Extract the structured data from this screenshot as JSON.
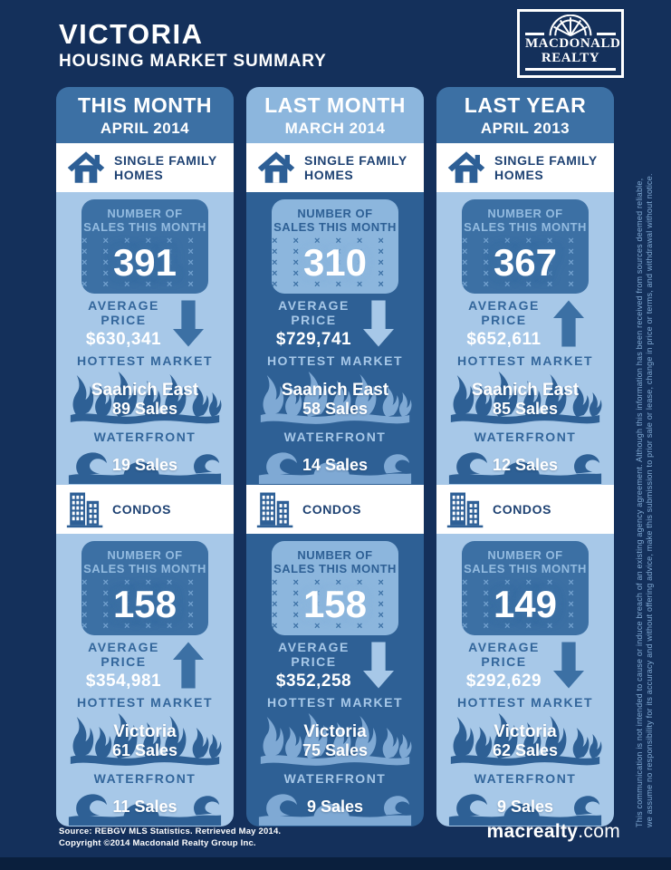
{
  "header": {
    "title": "VICTORIA",
    "subtitle": "HOUSING MARKET SUMMARY",
    "logo_line1": "MACDONALD",
    "logo_line2": "REALTY"
  },
  "labels": {
    "sfh_l1": "SINGLE FAMILY",
    "sfh_l2": "HOMES",
    "condos": "CONDOS",
    "sales_l1": "NUMBER OF",
    "sales_l2": "SALES THIS MONTH",
    "avg_l1": "AVERAGE",
    "avg_l2": "PRICE",
    "hottest": "HOTTEST MARKET",
    "waterfront": "WATERFRONT"
  },
  "columns": [
    {
      "period": "THIS MONTH",
      "date": "APRIL 2014",
      "sfh": {
        "sales": "391",
        "avg_price": "$630,341",
        "trend": "down",
        "hottest_name": "Saanich East",
        "hottest_sales": "89 Sales",
        "waterfront_sales": "19 Sales"
      },
      "condos": {
        "sales": "158",
        "avg_price": "$354,981",
        "trend": "up",
        "hottest_name": "Victoria",
        "hottest_sales": "61 Sales",
        "waterfront_sales": "11 Sales"
      }
    },
    {
      "period": "LAST MONTH",
      "date": "MARCH 2014",
      "sfh": {
        "sales": "310",
        "avg_price": "$729,741",
        "trend": "down",
        "hottest_name": "Saanich East",
        "hottest_sales": "58 Sales",
        "waterfront_sales": "14 Sales"
      },
      "condos": {
        "sales": "158",
        "avg_price": "$352,258",
        "trend": "down",
        "hottest_name": "Victoria",
        "hottest_sales": "75 Sales",
        "waterfront_sales": "9 Sales"
      }
    },
    {
      "period": "LAST YEAR",
      "date": "APRIL 2013",
      "sfh": {
        "sales": "367",
        "avg_price": "$652,611",
        "trend": "up",
        "hottest_name": "Saanich East",
        "hottest_sales": "85 Sales",
        "waterfront_sales": "12 Sales"
      },
      "condos": {
        "sales": "149",
        "avg_price": "$292,629",
        "trend": "down",
        "hottest_name": "Victoria",
        "hottest_sales": "62 Sales",
        "waterfront_sales": "9 Sales"
      }
    }
  ],
  "footer": {
    "source1": "Source:  REBGV MLS Statistics. Retrieved May 2014.",
    "source2": "Copyright ©2014 Macdonald Realty Group Inc.",
    "site_bold": "macrealty",
    "site_tld": ".com"
  },
  "disclaimer": {
    "line1": "This communication is not intended to cause or induce breach of an existing agency agreement.  Although this information has been received from sources deemed reliable,",
    "line2": "we assume no responsibility for its accuracy and without offering advice, make this submission to prior sale or lease, change in price or terms, and withdrawal without notice."
  },
  "colors": {
    "background_navy": "#14305b",
    "medium_blue": "#3c70a4",
    "light_blue": "#a7c8e8",
    "dark_body_blue": "#2e6095",
    "white": "#ffffff"
  },
  "chart_data": {
    "type": "table",
    "title": "Victoria Housing Market Summary",
    "columns": [
      "This Month (April 2014)",
      "Last Month (March 2014)",
      "Last Year (April 2013)"
    ],
    "rows": [
      {
        "metric": "Single Family Homes — Number of Sales",
        "values": [
          391,
          310,
          367
        ]
      },
      {
        "metric": "Single Family Homes — Average Price ($)",
        "values": [
          630341,
          729741,
          652611
        ]
      },
      {
        "metric": "Single Family Homes — Price Trend",
        "values": [
          "down",
          "down",
          "up"
        ]
      },
      {
        "metric": "Single Family Homes — Hottest Market",
        "values": [
          "Saanich East (89 sales)",
          "Saanich East (58 sales)",
          "Saanich East (85 sales)"
        ]
      },
      {
        "metric": "Single Family Homes — Waterfront Sales",
        "values": [
          19,
          14,
          12
        ]
      },
      {
        "metric": "Condos — Number of Sales",
        "values": [
          158,
          158,
          149
        ]
      },
      {
        "metric": "Condos — Average Price ($)",
        "values": [
          354981,
          352258,
          292629
        ]
      },
      {
        "metric": "Condos — Price Trend",
        "values": [
          "up",
          "down",
          "down"
        ]
      },
      {
        "metric": "Condos — Hottest Market",
        "values": [
          "Victoria (61 sales)",
          "Victoria (75 sales)",
          "Victoria (62 sales)"
        ]
      },
      {
        "metric": "Condos — Waterfront Sales",
        "values": [
          11,
          9,
          9
        ]
      }
    ]
  }
}
